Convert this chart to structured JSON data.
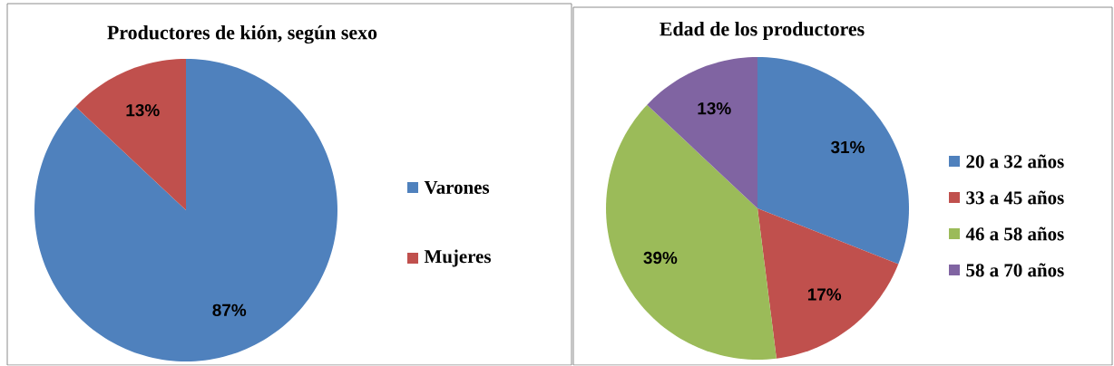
{
  "chart_data": [
    {
      "type": "pie",
      "title": "Productores de kión, según sexo",
      "categories": [
        "Varones",
        "Mujeres"
      ],
      "values": [
        87,
        13
      ],
      "value_labels": [
        "87%",
        "13%"
      ],
      "colors": [
        "#4f81bd",
        "#c0504d"
      ],
      "legend": "right"
    },
    {
      "type": "pie",
      "title": "Edad de los productores",
      "categories": [
        "20  a 32 años",
        "33 a 45 años",
        "46 a 58 años",
        "58 a 70 años"
      ],
      "values": [
        31,
        17,
        39,
        13
      ],
      "value_labels": [
        "31%",
        "17%",
        "39%",
        "13%"
      ],
      "colors": [
        "#4f81bd",
        "#c0504d",
        "#9bbb59",
        "#8064a2"
      ],
      "legend": "right"
    }
  ]
}
